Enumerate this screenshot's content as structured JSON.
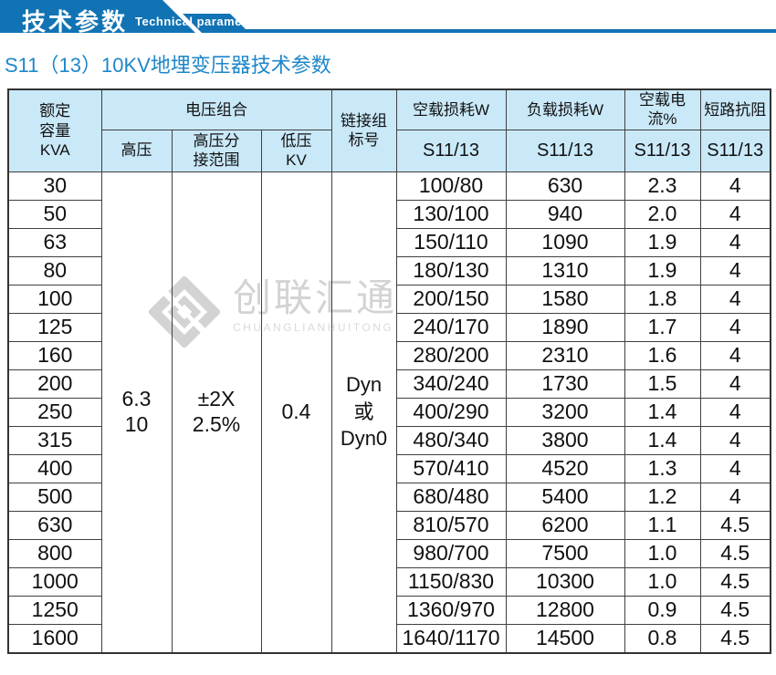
{
  "banner": {
    "title": "技术参数",
    "subtitle": "Technical parameter"
  },
  "heading": "S11（13）10KV地埋变压器技术参数",
  "watermark": {
    "cn": "创联汇通",
    "en": "CHUANGLIANHUITONG"
  },
  "colors": {
    "banner_blue": "#1173b4",
    "heading_blue": "#1e87c9",
    "table_header_bg": "#c9e8f8",
    "border": "#404040",
    "watermark_gray": "#d3d3d3"
  },
  "table": {
    "header": {
      "capacity_lines": [
        "额定",
        "容量",
        "KVA"
      ],
      "voltage_combo": "电压组合",
      "hv": "高压",
      "hv_tap_lines": [
        "高压分",
        "接范围"
      ],
      "lv_lines": [
        "低压",
        "KV"
      ],
      "link_lines": [
        "链接组",
        "标号"
      ],
      "no_load_loss": "空载损耗W",
      "load_loss": "负载损耗W",
      "no_load_current": "空载电流%",
      "impedance": "短路抗阻",
      "model": "S11/13"
    },
    "merged": {
      "hv_lines": [
        "6.3",
        "10"
      ],
      "tap_lines": [
        "±2X",
        "2.5%"
      ],
      "lv": "0.4",
      "link_lines": [
        "Dyn",
        "或",
        "Dyn0"
      ]
    },
    "rows": [
      {
        "kva": "30",
        "no_load": "100/80",
        "load": "630",
        "current": "2.3",
        "impedance": "4"
      },
      {
        "kva": "50",
        "no_load": "130/100",
        "load": "940",
        "current": "2.0",
        "impedance": "4"
      },
      {
        "kva": "63",
        "no_load": "150/110",
        "load": "1090",
        "current": "1.9",
        "impedance": "4"
      },
      {
        "kva": "80",
        "no_load": "180/130",
        "load": "1310",
        "current": "1.9",
        "impedance": "4"
      },
      {
        "kva": "100",
        "no_load": "200/150",
        "load": "1580",
        "current": "1.8",
        "impedance": "4"
      },
      {
        "kva": "125",
        "no_load": "240/170",
        "load": "1890",
        "current": "1.7",
        "impedance": "4"
      },
      {
        "kva": "160",
        "no_load": "280/200",
        "load": "2310",
        "current": "1.6",
        "impedance": "4"
      },
      {
        "kva": "200",
        "no_load": "340/240",
        "load": "1730",
        "current": "1.5",
        "impedance": "4"
      },
      {
        "kva": "250",
        "no_load": "400/290",
        "load": "3200",
        "current": "1.4",
        "impedance": "4"
      },
      {
        "kva": "315",
        "no_load": "480/340",
        "load": "3800",
        "current": "1.4",
        "impedance": "4"
      },
      {
        "kva": "400",
        "no_load": "570/410",
        "load": "4520",
        "current": "1.3",
        "impedance": "4"
      },
      {
        "kva": "500",
        "no_load": "680/480",
        "load": "5400",
        "current": "1.2",
        "impedance": "4"
      },
      {
        "kva": "630",
        "no_load": "810/570",
        "load": "6200",
        "current": "1.1",
        "impedance": "4.5"
      },
      {
        "kva": "800",
        "no_load": "980/700",
        "load": "7500",
        "current": "1.0",
        "impedance": "4.5"
      },
      {
        "kva": "1000",
        "no_load": "1150/830",
        "load": "10300",
        "current": "1.0",
        "impedance": "4.5"
      },
      {
        "kva": "1250",
        "no_load": "1360/970",
        "load": "12800",
        "current": "0.9",
        "impedance": "4.5"
      },
      {
        "kva": "1600",
        "no_load": "1640/1170",
        "load": "14500",
        "current": "0.8",
        "impedance": "4.5"
      }
    ]
  }
}
